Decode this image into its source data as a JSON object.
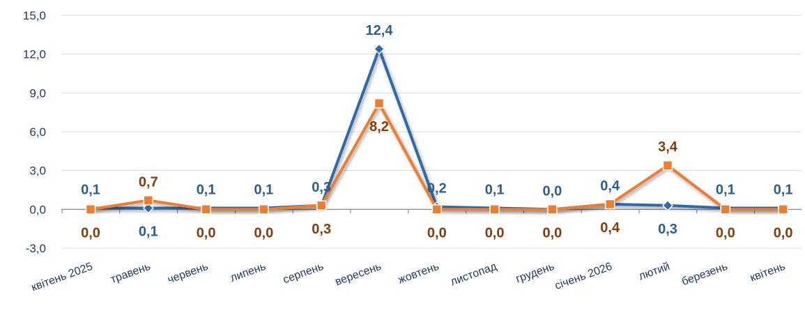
{
  "chart_data": {
    "type": "line",
    "categories": [
      "квітень 2025",
      "травень",
      "червень",
      "липень",
      "серпень",
      "вересень",
      "жовтень",
      "листопад",
      "грудень",
      "січень 2026",
      "лютий",
      "березень",
      "квітень"
    ],
    "y_ticks": [
      "-3,0",
      "0,0",
      "3,0",
      "6,0",
      "9,0",
      "12,0",
      "15,0"
    ],
    "ylim": [
      -3,
      15
    ],
    "grid": true,
    "legend": "none",
    "series": [
      {
        "color": "#2e6aa8",
        "marker": "diamond",
        "values": [
          0.1,
          0.1,
          0.1,
          0.1,
          0.3,
          12.4,
          0.2,
          0.1,
          0.0,
          0.4,
          0.3,
          0.1,
          0.1
        ],
        "labels": [
          "0,1",
          "0,1",
          "0,1",
          "0,1",
          "0,3",
          "12,4",
          "0,2",
          "0,1",
          "0,0",
          "0,4",
          "0,3",
          "0,1",
          "0,1"
        ],
        "label_color": "#2e5e8e"
      },
      {
        "color": "#ed7d31",
        "marker": "square",
        "values": [
          0.0,
          0.7,
          0.0,
          0.0,
          0.3,
          8.2,
          0.0,
          0.0,
          0.0,
          0.4,
          3.4,
          0.0,
          0.0
        ],
        "labels": [
          "0,0",
          "0,7",
          "0,0",
          "0,0",
          "0,3",
          "8,2",
          "0,0",
          "0,0",
          "0,0",
          "0,4",
          "3,4",
          "0,0",
          "0,0"
        ],
        "label_color": "#843c0c"
      }
    ]
  }
}
